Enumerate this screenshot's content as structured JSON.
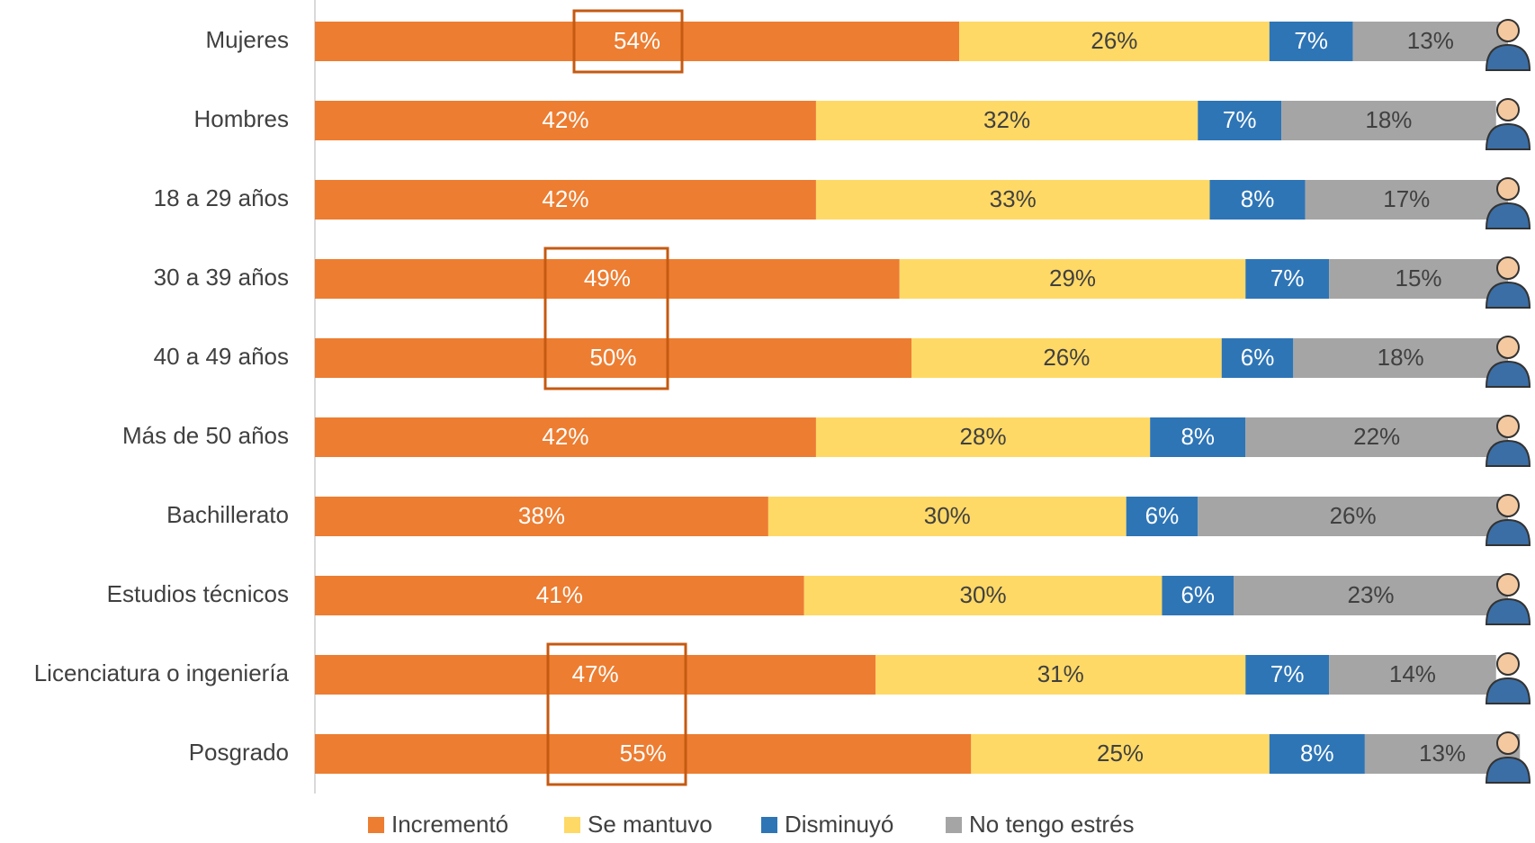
{
  "chart_data": {
    "type": "stacked-bar-horizontal",
    "categories": [
      "Mujeres",
      "Hombres",
      "18 a 29 años",
      "30 a 39 años",
      "40 a 49 años",
      "Más de 50 años",
      "Bachillerato",
      "Estudios técnicos",
      "Licenciatura o ingeniería",
      "Posgrado"
    ],
    "series": [
      {
        "name": "Incrementó",
        "color": "#ED7D31",
        "label_color": "#ffffff",
        "values": [
          54,
          42,
          42,
          49,
          50,
          42,
          38,
          41,
          47,
          55
        ],
        "value_labels": [
          "54%",
          "42%",
          "42%",
          "49%",
          "50%",
          "42%",
          "38%",
          "41%",
          "47%",
          "55%"
        ]
      },
      {
        "name": "Se mantuvo",
        "color": "#FFD966",
        "label_color": "#404040",
        "values": [
          26,
          32,
          33,
          29,
          26,
          28,
          30,
          30,
          31,
          25
        ],
        "value_labels": [
          "26%",
          "32%",
          "33%",
          "29%",
          "26%",
          "28%",
          "30%",
          "30%",
          "31%",
          "25%"
        ]
      },
      {
        "name": "Disminuyó",
        "color": "#2E75B6",
        "label_color": "#ffffff",
        "values": [
          7,
          7,
          8,
          7,
          6,
          8,
          6,
          6,
          7,
          8
        ],
        "value_labels": [
          "7%",
          "7%",
          "8%",
          "7%",
          "6%",
          "8%",
          "6%",
          "6%",
          "7%",
          "8%"
        ]
      },
      {
        "name": "No tengo estrés",
        "color": "#A5A5A5",
        "label_color": "#404040",
        "values": [
          13,
          18,
          17,
          15,
          18,
          22,
          26,
          23,
          14,
          13
        ],
        "value_labels": [
          "13%",
          "18%",
          "17%",
          "15%",
          "18%",
          "22%",
          "26%",
          "23%",
          "14%",
          "13%"
        ]
      }
    ],
    "xlim": [
      0,
      100
    ]
  }
}
